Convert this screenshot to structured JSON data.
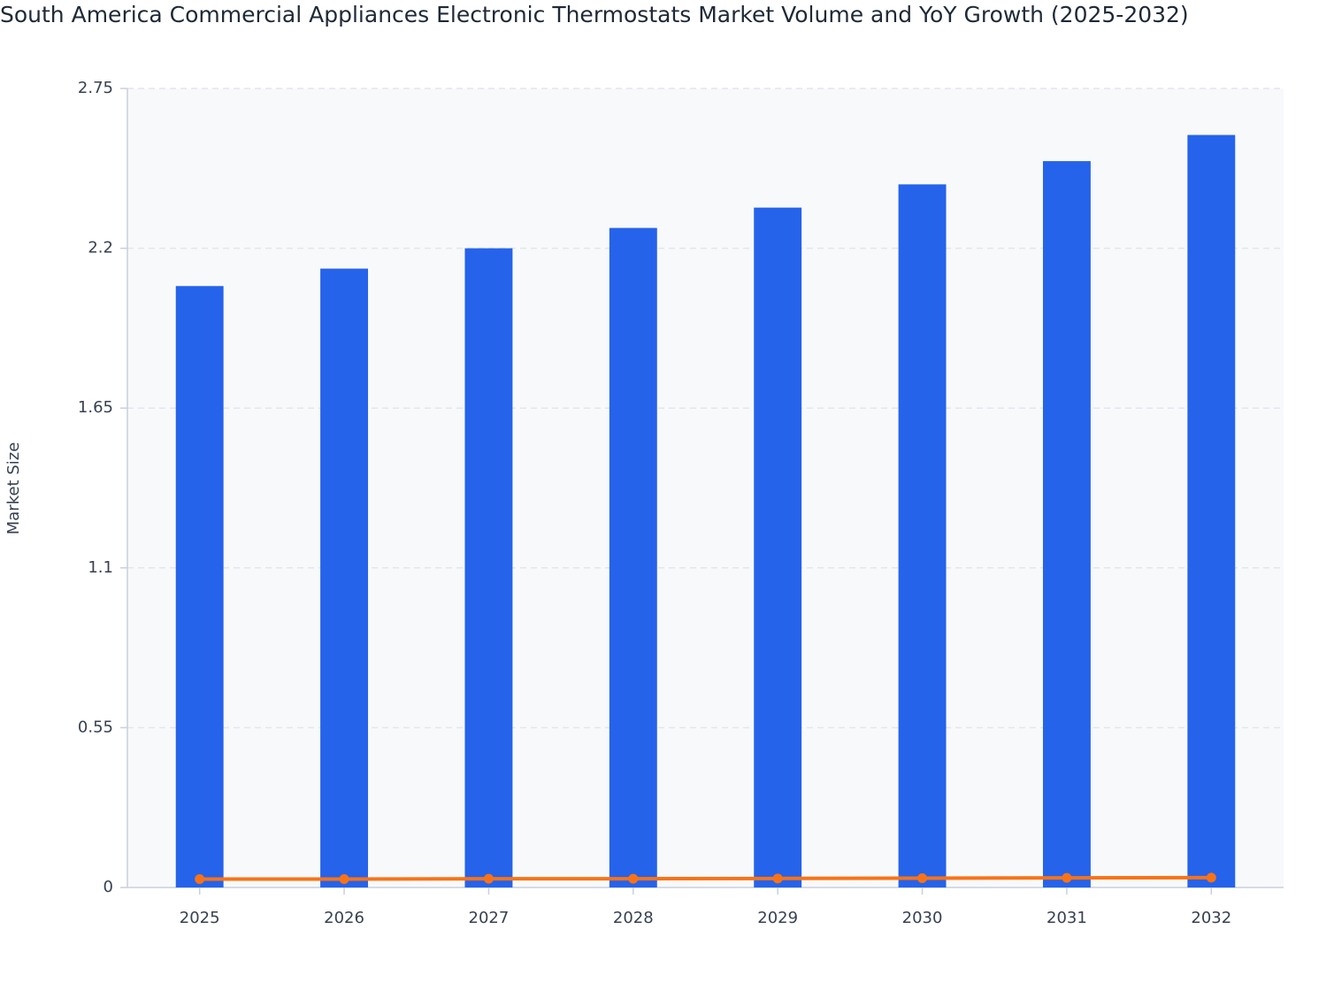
{
  "chart_data": {
    "type": "bar",
    "title": "South America Commercial Appliances Electronic Thermostats Market Volume and YoY Growth (2025-2032)",
    "y_label": "Market Size",
    "categories": [
      "2025",
      "2026",
      "2027",
      "2028",
      "2029",
      "2030",
      "2031",
      "2032"
    ],
    "series": [
      {
        "type": "bar",
        "color": "#2563eb",
        "values": [
          2.07,
          2.13,
          2.2,
          2.27,
          2.34,
          2.42,
          2.5,
          2.59
        ]
      },
      {
        "type": "line",
        "color": "#f97316",
        "values": [
          0.029,
          0.029,
          0.03,
          0.03,
          0.031,
          0.032,
          0.033,
          0.034
        ]
      }
    ],
    "ylim": [
      0,
      2.75
    ],
    "yticks": [
      0,
      0.55,
      1.1,
      1.65,
      2.2,
      2.75
    ],
    "grid": true
  }
}
